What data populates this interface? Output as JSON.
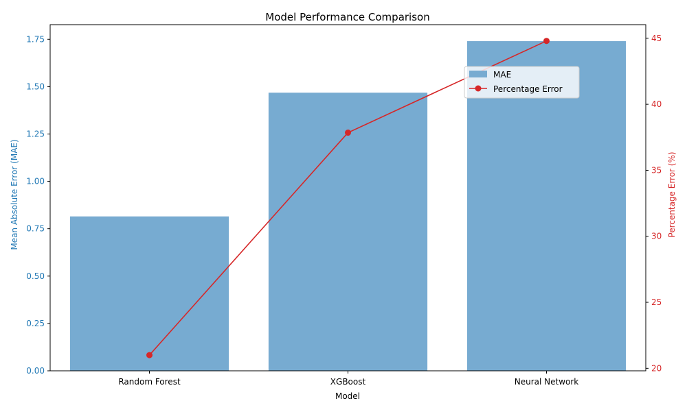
{
  "chart_data": {
    "type": "bar",
    "title": "Model Performance Comparison",
    "xlabel": "Model",
    "categories": [
      "Random Forest",
      "XGBoost",
      "Neural Network"
    ],
    "series": [
      {
        "name": "MAE",
        "type": "bar",
        "axis": "left",
        "color": "#77abd1",
        "values": [
          0.815,
          1.468,
          1.74
        ]
      },
      {
        "name": "Percentage Error",
        "type": "line",
        "axis": "right",
        "color": "#d62728",
        "marker": "circle",
        "values": [
          21.0,
          37.85,
          44.8
        ]
      }
    ],
    "y_left": {
      "label": "Mean Absolute Error (MAE)",
      "color": "#1f77b4",
      "range": [
        0,
        1.827
      ],
      "ticks": [
        0,
        0.25,
        0.5,
        0.75,
        1.0,
        1.25,
        1.5,
        1.75
      ],
      "tick_labels": [
        "0.00",
        "0.25",
        "0.50",
        "0.75",
        "1.00",
        "1.25",
        "1.50",
        "1.75"
      ]
    },
    "y_right": {
      "label": "Percentage Error (%)",
      "color": "#d62728",
      "range": [
        19.81,
        46.03
      ],
      "ticks": [
        20,
        25,
        30,
        35,
        40,
        45
      ],
      "tick_labels": [
        "20",
        "25",
        "30",
        "35",
        "40",
        "45"
      ]
    },
    "grid": false,
    "legend_position": "upper-right"
  }
}
